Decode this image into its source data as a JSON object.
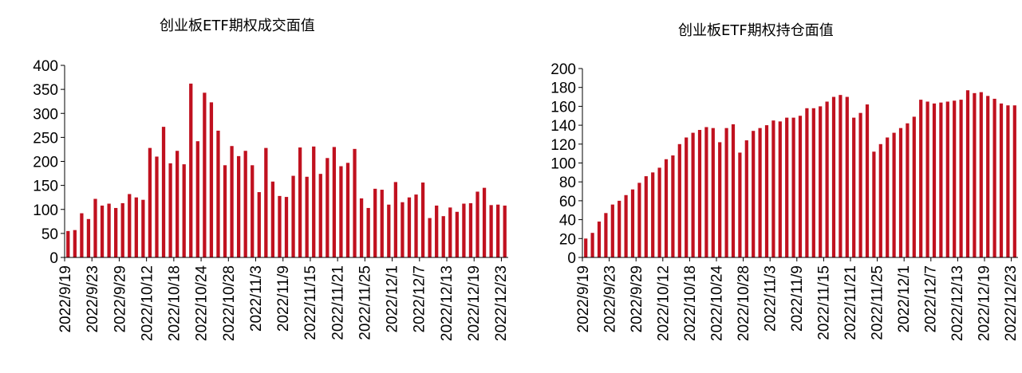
{
  "chart_data": [
    {
      "type": "bar",
      "title": "创业板ETF期权成交面值",
      "xlabel": "",
      "ylabel": "",
      "ylim": [
        0,
        400
      ],
      "yticks": [
        0,
        50,
        100,
        150,
        200,
        250,
        300,
        350,
        400
      ],
      "grid": false,
      "tick_labels": [
        "2022/9/19",
        "2022/9/23",
        "2022/9/29",
        "2022/10/12",
        "2022/10/18",
        "2022/10/24",
        "2022/10/28",
        "2022/11/3",
        "2022/11/9",
        "2022/11/15",
        "2022/11/21",
        "2022/11/25",
        "2022/12/1",
        "2022/12/7",
        "2022/12/13",
        "2022/12/19",
        "2022/12/23"
      ],
      "values": [
        55,
        57,
        92,
        80,
        122,
        108,
        112,
        103,
        113,
        132,
        125,
        120,
        228,
        210,
        272,
        196,
        222,
        194,
        362,
        242,
        343,
        323,
        264,
        192,
        232,
        211,
        222,
        192,
        136,
        228,
        158,
        128,
        126,
        170,
        229,
        168,
        231,
        174,
        207,
        230,
        190,
        197,
        226,
        123,
        103,
        143,
        141,
        110,
        157,
        115,
        125,
        131,
        156,
        82,
        108,
        86,
        104,
        95,
        112,
        113,
        137,
        145,
        109,
        110,
        108
      ],
      "color": "#c0111f"
    },
    {
      "type": "bar",
      "title": "创业板ETF期权持仓面值",
      "xlabel": "",
      "ylabel": "",
      "ylim": [
        0,
        200
      ],
      "yticks": [
        0,
        20,
        40,
        60,
        80,
        100,
        120,
        140,
        160,
        180,
        200
      ],
      "grid": false,
      "tick_labels": [
        "2022/9/19",
        "2022/9/23",
        "2022/9/29",
        "2022/10/12",
        "2022/10/18",
        "2022/10/24",
        "2022/10/28",
        "2022/11/3",
        "2022/11/9",
        "2022/11/15",
        "2022/11/21",
        "2022/11/25",
        "2022/12/1",
        "2022/12/7",
        "2022/12/13",
        "2022/12/19",
        "2022/12/23"
      ],
      "values": [
        20,
        26,
        38,
        47,
        56,
        60,
        66,
        72,
        79,
        86,
        90,
        95,
        104,
        108,
        120,
        127,
        132,
        135,
        138,
        137,
        122,
        137,
        141,
        111,
        124,
        134,
        137,
        140,
        145,
        144,
        148,
        148,
        150,
        158,
        158,
        160,
        165,
        170,
        172,
        170,
        148,
        153,
        162,
        112,
        120,
        127,
        132,
        137,
        142,
        149,
        167,
        165,
        163,
        164,
        165,
        166,
        167,
        177,
        174,
        175,
        171,
        168,
        163,
        161,
        161
      ],
      "color": "#c0111f"
    }
  ]
}
